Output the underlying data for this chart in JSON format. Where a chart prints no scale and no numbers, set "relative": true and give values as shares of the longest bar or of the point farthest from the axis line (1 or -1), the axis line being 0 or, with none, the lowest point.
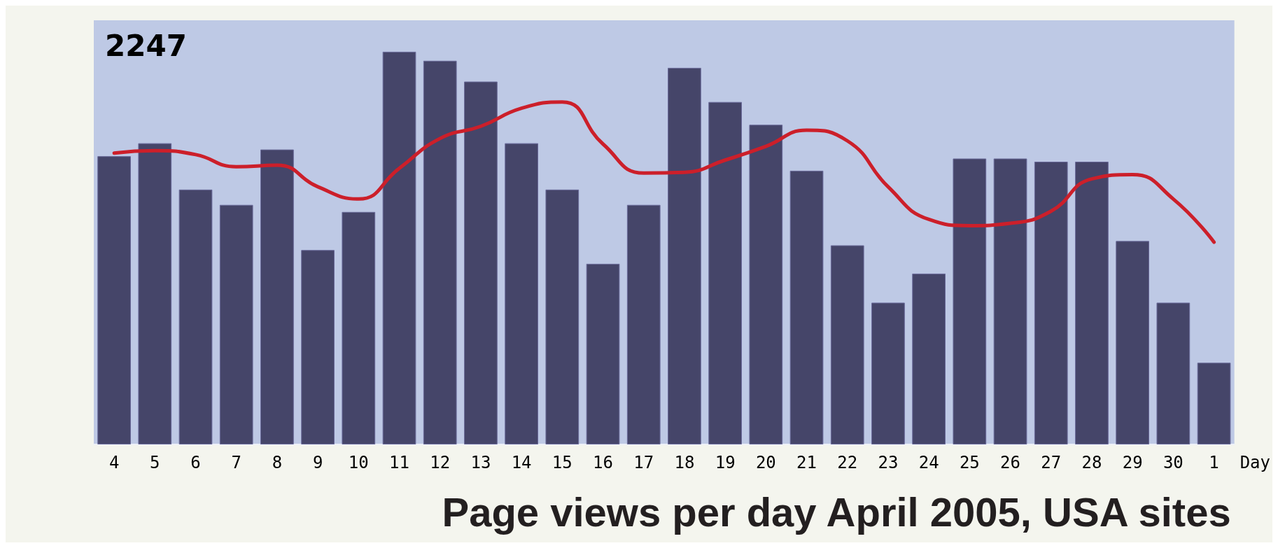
{
  "chart_data": {
    "type": "bar",
    "title": "Page views per day April 2005, USA sites",
    "xlabel": "Day",
    "annotations": [
      "2247"
    ],
    "relative": true,
    "categories": [
      "4",
      "5",
      "6",
      "7",
      "8",
      "9",
      "10",
      "11",
      "12",
      "13",
      "14",
      "15",
      "16",
      "17",
      "18",
      "19",
      "20",
      "21",
      "22",
      "23",
      "24",
      "25",
      "26",
      "27",
      "28",
      "29",
      "30",
      "1"
    ],
    "series": [
      {
        "color": "#454569",
        "values": [
          0.734,
          0.767,
          0.649,
          0.61,
          0.751,
          0.495,
          0.592,
          1,
          0.977,
          0.924,
          0.767,
          0.649,
          0.46,
          0.61,
          0.959,
          0.872,
          0.814,
          0.697,
          0.507,
          0.361,
          0.435,
          0.728,
          0.728,
          0.72,
          0.72,
          0.518,
          0.361,
          0.208
        ]
      },
      {
        "type": "line",
        "color": "#cc1f2a",
        "values": [
          0.742,
          0.748,
          0.738,
          0.707,
          0.711,
          0.656,
          0.625,
          0.703,
          0.779,
          0.81,
          0.856,
          0.872,
          0.765,
          0.691,
          0.693,
          0.724,
          0.759,
          0.8,
          0.773,
          0.656,
          0.573,
          0.557,
          0.563,
          0.594,
          0.676,
          0.687,
          0.625,
          0.515
        ]
      }
    ]
  }
}
